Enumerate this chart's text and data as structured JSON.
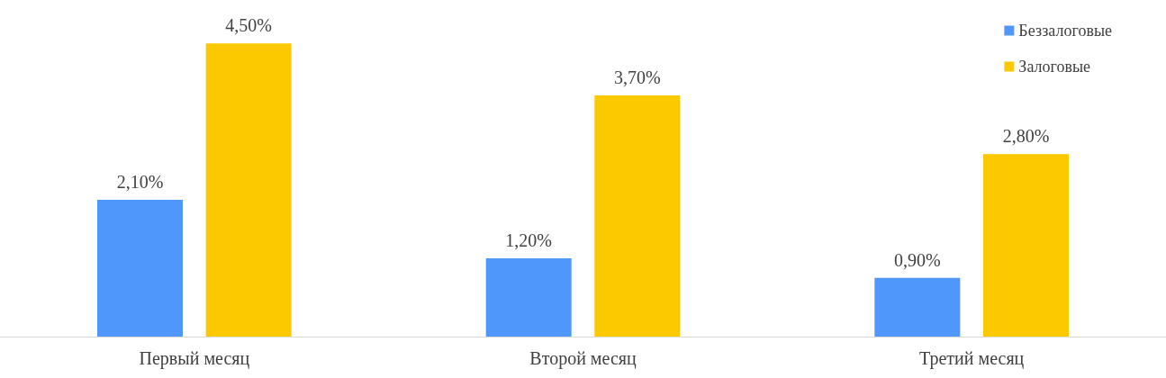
{
  "chart_data": {
    "type": "bar",
    "categories": [
      "Первый месяц",
      "Второй месяц",
      "Третий месяц"
    ],
    "series": [
      {
        "name": "Беззалоговые",
        "color": "#4f97fb",
        "values": [
          2.1,
          1.2,
          0.9
        ],
        "value_labels": [
          "2,10%",
          "1,20%",
          "0,90%"
        ]
      },
      {
        "name": "Залоговые",
        "color": "#fcc800",
        "values": [
          4.5,
          3.7,
          2.8
        ],
        "value_labels": [
          "4,50%",
          "3,70%",
          "2,80%"
        ]
      }
    ],
    "legend": "top right"
  }
}
